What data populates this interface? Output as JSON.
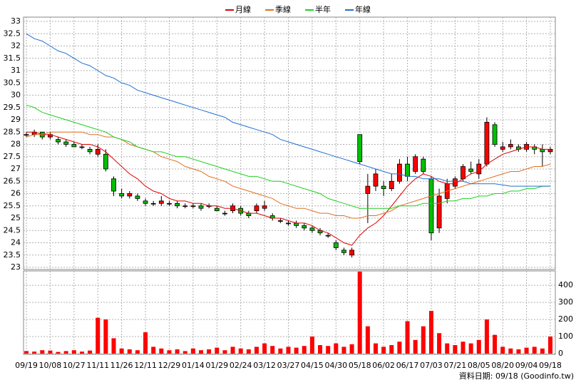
{
  "chart_data": {
    "type": "candlestick",
    "legend_position": "top",
    "grid": true,
    "up_color": "#ff0000",
    "down_color": "#00c000",
    "categories": [
      "09/19",
      null,
      null,
      "10/08",
      null,
      null,
      "10/27",
      null,
      null,
      "11/11",
      null,
      null,
      "11/26",
      null,
      null,
      "12/11",
      null,
      null,
      "12/29",
      null,
      null,
      "01/14",
      null,
      null,
      "01/29",
      null,
      null,
      "02/24",
      null,
      null,
      "03/12",
      null,
      null,
      "03/27",
      null,
      null,
      "04/15",
      null,
      null,
      "04/30",
      null,
      null,
      "05/18",
      null,
      null,
      "06/02",
      null,
      null,
      "06/17",
      null,
      null,
      "07/03",
      null,
      null,
      "07/21",
      null,
      null,
      "08/05",
      null,
      null,
      "08/20",
      null,
      null,
      "09/04",
      null,
      null,
      "09/18"
    ],
    "open": [
      28.4,
      28.4,
      28.5,
      28.3,
      28.2,
      28.1,
      28.0,
      27.9,
      27.8,
      27.6,
      27.6,
      26.6,
      26.0,
      25.9,
      25.9,
      25.7,
      25.6,
      25.6,
      25.6,
      25.6,
      25.5,
      25.5,
      25.5,
      25.5,
      25.4,
      25.2,
      25.3,
      25.4,
      25.2,
      25.3,
      25.4,
      25.1,
      24.9,
      24.8,
      24.8,
      24.7,
      24.6,
      24.5,
      24.3,
      24.0,
      23.7,
      23.5,
      28.4,
      26.0,
      26.3,
      26.3,
      26.2,
      26.5,
      27.2,
      26.9,
      27.4,
      26.6,
      24.6,
      25.8,
      26.3,
      26.6,
      27.0,
      26.8,
      27.2,
      28.8,
      27.8,
      27.9,
      27.9,
      27.8,
      27.9,
      27.8,
      27.7
    ],
    "high": [
      28.5,
      28.6,
      28.5,
      28.5,
      28.3,
      28.2,
      28.1,
      28.0,
      27.9,
      28.0,
      27.8,
      26.7,
      26.2,
      26.1,
      26.0,
      25.8,
      25.7,
      25.9,
      25.7,
      25.7,
      25.6,
      25.6,
      25.6,
      25.6,
      25.5,
      25.3,
      25.6,
      25.5,
      25.3,
      25.6,
      25.7,
      25.2,
      25.0,
      24.9,
      24.9,
      24.8,
      24.7,
      24.6,
      24.4,
      24.1,
      23.8,
      23.8,
      28.4,
      26.8,
      27.0,
      26.5,
      26.8,
      27.4,
      27.5,
      27.6,
      27.5,
      26.7,
      26.2,
      26.6,
      26.7,
      27.2,
      27.3,
      27.4,
      29.1,
      28.9,
      28.1,
      28.2,
      28.0,
      28.1,
      28.0,
      28.0,
      27.9
    ],
    "low": [
      28.3,
      28.3,
      28.2,
      28.2,
      28.0,
      27.9,
      27.9,
      27.8,
      27.6,
      27.5,
      26.9,
      25.9,
      25.8,
      25.8,
      25.7,
      25.5,
      25.5,
      25.5,
      25.5,
      25.4,
      25.4,
      25.4,
      25.3,
      25.4,
      25.3,
      25.1,
      25.2,
      25.1,
      25.0,
      25.2,
      25.3,
      24.9,
      24.8,
      24.7,
      24.6,
      24.5,
      24.4,
      24.3,
      24.2,
      23.7,
      23.5,
      23.4,
      27.2,
      24.8,
      26.1,
      25.9,
      26.1,
      26.4,
      26.5,
      26.8,
      26.8,
      24.1,
      24.4,
      25.6,
      26.2,
      26.5,
      26.8,
      26.6,
      27.1,
      27.9,
      27.7,
      27.8,
      27.7,
      27.7,
      27.6,
      27.1,
      27.6
    ],
    "close": [
      28.4,
      28.5,
      28.3,
      28.4,
      28.1,
      28.0,
      27.9,
      27.9,
      27.7,
      27.8,
      27.0,
      26.1,
      25.9,
      26.0,
      25.8,
      25.6,
      25.6,
      25.7,
      25.6,
      25.5,
      25.5,
      25.5,
      25.4,
      25.5,
      25.3,
      25.2,
      25.5,
      25.2,
      25.1,
      25.5,
      25.5,
      25.0,
      24.9,
      24.8,
      24.7,
      24.6,
      24.5,
      24.4,
      24.3,
      23.8,
      23.6,
      23.7,
      27.3,
      26.3,
      26.8,
      26.2,
      26.5,
      27.2,
      26.7,
      27.5,
      26.9,
      24.4,
      25.9,
      26.4,
      26.6,
      27.1,
      26.9,
      27.2,
      28.9,
      28.0,
      27.9,
      28.0,
      27.8,
      28.0,
      27.8,
      27.7,
      27.8
    ],
    "series": [
      {
        "name": "月線",
        "color": "#e00000",
        "values": [
          28.5,
          28.5,
          28.4,
          28.4,
          28.3,
          28.2,
          28.1,
          28.0,
          28.0,
          27.9,
          27.7,
          27.4,
          27.1,
          26.8,
          26.6,
          26.3,
          26.1,
          26.0,
          25.8,
          25.7,
          25.7,
          25.6,
          25.6,
          25.5,
          25.5,
          25.4,
          25.4,
          25.3,
          25.2,
          25.2,
          25.1,
          25.0,
          25.0,
          24.9,
          24.8,
          24.8,
          24.7,
          24.5,
          24.4,
          24.2,
          24.0,
          23.9,
          24.3,
          24.6,
          24.8,
          25.1,
          25.5,
          25.9,
          26.3,
          26.6,
          26.8,
          26.7,
          26.5,
          26.4,
          26.4,
          26.6,
          26.8,
          26.9,
          27.2,
          27.4,
          27.6,
          27.7,
          27.8,
          27.9,
          27.9,
          27.8,
          27.8
        ]
      },
      {
        "name": "季線",
        "color": "#e07020",
        "values": [
          28.3,
          28.4,
          28.4,
          28.5,
          28.5,
          28.5,
          28.5,
          28.5,
          28.4,
          28.4,
          28.3,
          28.3,
          28.2,
          28.0,
          27.9,
          27.8,
          27.7,
          27.5,
          27.4,
          27.3,
          27.1,
          27.0,
          26.9,
          26.7,
          26.6,
          26.5,
          26.3,
          26.2,
          26.1,
          26.0,
          25.9,
          25.8,
          25.6,
          25.5,
          25.4,
          25.4,
          25.3,
          25.2,
          25.2,
          25.1,
          25.1,
          25.0,
          25.0,
          25.1,
          25.1,
          25.2,
          25.3,
          25.5,
          25.6,
          25.7,
          25.8,
          25.9,
          26.0,
          26.1,
          26.2,
          26.3,
          26.4,
          26.5,
          26.6,
          26.7,
          26.8,
          26.9,
          26.9,
          27.0,
          27.1,
          27.1,
          27.2
        ]
      },
      {
        "name": "半年",
        "color": "#20d020",
        "values": [
          29.6,
          29.5,
          29.3,
          29.2,
          29.1,
          29.0,
          28.9,
          28.8,
          28.7,
          28.6,
          28.5,
          28.3,
          28.2,
          28.1,
          27.9,
          27.8,
          27.7,
          27.7,
          27.6,
          27.5,
          27.5,
          27.4,
          27.3,
          27.2,
          27.1,
          27.0,
          26.9,
          26.8,
          26.7,
          26.7,
          26.6,
          26.5,
          26.5,
          26.4,
          26.3,
          26.2,
          26.1,
          26.0,
          25.8,
          25.7,
          25.6,
          25.5,
          25.4,
          25.4,
          25.4,
          25.4,
          25.4,
          25.5,
          25.5,
          25.5,
          25.6,
          25.6,
          25.6,
          25.7,
          25.7,
          25.8,
          25.8,
          25.9,
          25.9,
          26.0,
          26.0,
          26.1,
          26.1,
          26.2,
          26.2,
          26.3,
          26.3
        ]
      },
      {
        "name": "年線",
        "color": "#2070d0",
        "values": [
          32.5,
          32.3,
          32.2,
          32.0,
          31.8,
          31.7,
          31.5,
          31.3,
          31.2,
          31.0,
          30.8,
          30.7,
          30.5,
          30.4,
          30.2,
          30.1,
          30.0,
          29.9,
          29.8,
          29.7,
          29.6,
          29.5,
          29.4,
          29.3,
          29.2,
          29.1,
          28.9,
          28.8,
          28.7,
          28.6,
          28.5,
          28.4,
          28.2,
          28.1,
          28.0,
          27.9,
          27.8,
          27.7,
          27.6,
          27.5,
          27.4,
          27.3,
          27.2,
          27.1,
          27.0,
          26.9,
          26.8,
          26.8,
          26.7,
          26.7,
          26.6,
          26.6,
          26.6,
          26.5,
          26.5,
          26.5,
          26.4,
          26.4,
          26.4,
          26.4,
          26.35,
          26.3,
          26.3,
          26.3,
          26.3,
          26.3,
          26.3
        ]
      }
    ],
    "ylim": [
      23,
      33
    ],
    "yticks": [
      23,
      23.5,
      24,
      24.5,
      25,
      25.5,
      26,
      26.5,
      27,
      27.5,
      28,
      28.5,
      29,
      29.5,
      30,
      30.5,
      31,
      31.5,
      32,
      32.5,
      33
    ],
    "volume": {
      "color": "#ff0000",
      "values": [
        15,
        12,
        20,
        18,
        10,
        15,
        20,
        12,
        18,
        210,
        200,
        90,
        30,
        25,
        20,
        125,
        40,
        30,
        20,
        25,
        15,
        30,
        20,
        25,
        35,
        20,
        40,
        30,
        25,
        40,
        60,
        45,
        30,
        40,
        35,
        45,
        100,
        50,
        45,
        60,
        40,
        55,
        480,
        160,
        60,
        40,
        50,
        70,
        190,
        80,
        160,
        250,
        120,
        60,
        50,
        70,
        60,
        80,
        200,
        110,
        40,
        30,
        25,
        35,
        40,
        30,
        100
      ],
      "ylim": [
        0,
        480
      ],
      "yticks": [
        0,
        100,
        200,
        300,
        400
      ]
    },
    "footer": "資料日期: 09/18  (Goodinfo.tw)"
  }
}
